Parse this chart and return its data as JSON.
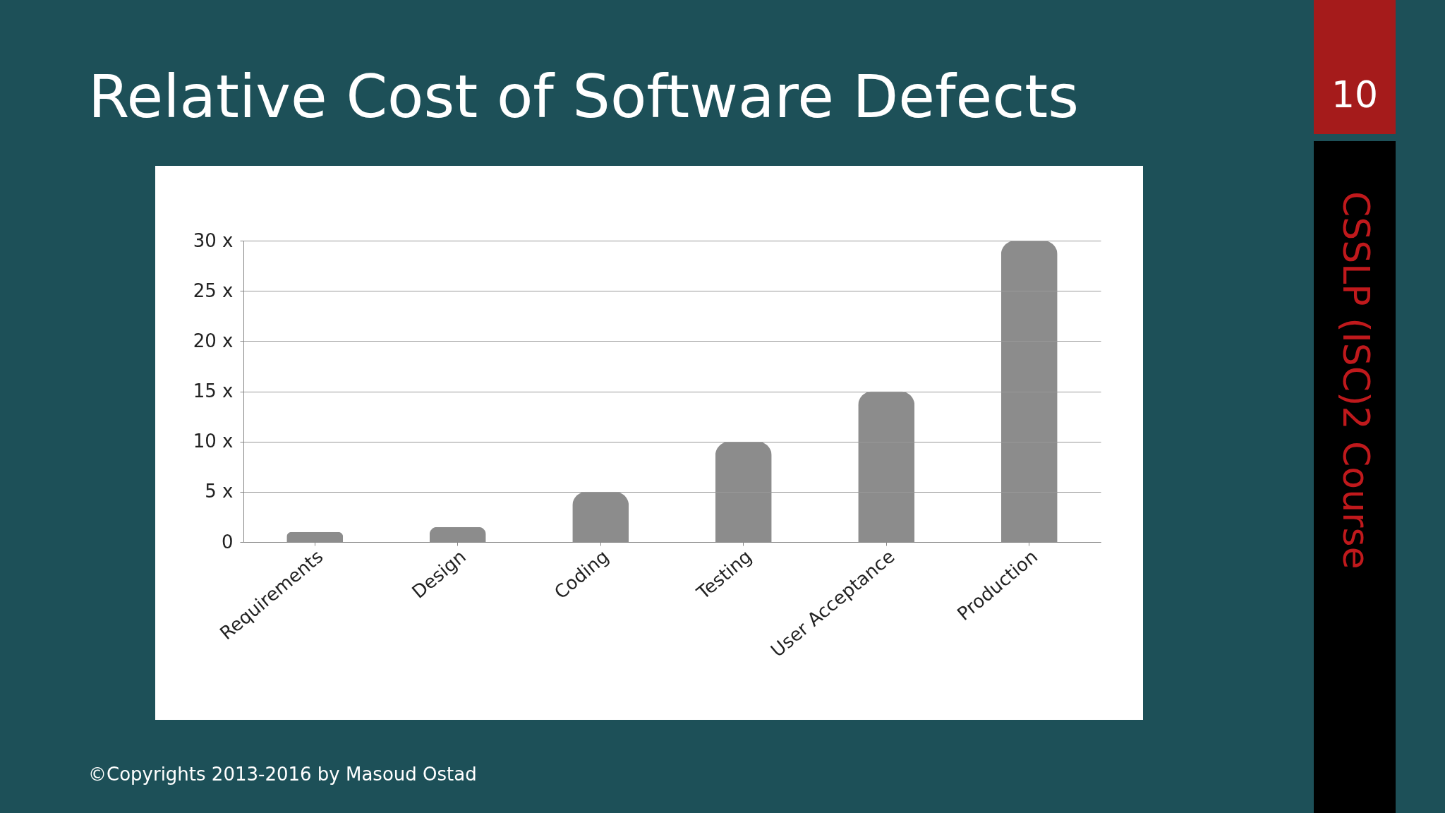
{
  "chart_data": {
    "type": "bar",
    "title": "Relative Cost of Software Defects",
    "categories": [
      "Requirements",
      "Design",
      "Coding",
      "Testing",
      "User Acceptance",
      "Production"
    ],
    "values": [
      1,
      1.5,
      5,
      10,
      15,
      30
    ],
    "color": "#8c8c8c",
    "ylim": [
      0,
      30
    ],
    "yticks": [
      0,
      {
        "value": 5,
        "label": "5 x"
      },
      {
        "value": 10,
        "label": "10 x"
      },
      {
        "value": 15,
        "label": "15 x"
      },
      {
        "value": 20,
        "label": "20 x"
      },
      {
        "value": 25,
        "label": "25 x"
      },
      {
        "value": 30,
        "label": "30 x"
      }
    ],
    "grid": "y",
    "annotations": [
      "10",
      "CSSLP (ISC)2 Course",
      "©Copyrights 2013-2016 by Masoud Ostad"
    ]
  }
}
